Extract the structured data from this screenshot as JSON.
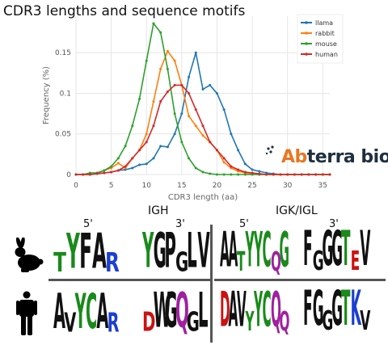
{
  "title": "CDR3 lengths and sequence motifs",
  "chart_data": {
    "type": "line",
    "xlabel": "CDR3 length (aa)",
    "ylabel": "Frequency (%)",
    "xlim": [
      0,
      36
    ],
    "ylim": [
      0,
      0.195
    ],
    "xticks": [
      0,
      5,
      10,
      15,
      20,
      25,
      30,
      35
    ],
    "yticks": [
      0,
      0.05,
      0.1,
      0.15
    ],
    "ytick_labels": [
      "0",
      "0.05",
      "0.1",
      "0.15"
    ],
    "grid": true,
    "legend_position": "top-right",
    "x": [
      0,
      1,
      2,
      3,
      4,
      5,
      6,
      7,
      8,
      9,
      10,
      11,
      12,
      13,
      14,
      15,
      16,
      17,
      18,
      19,
      20,
      21,
      22,
      23,
      24,
      25,
      26,
      27,
      28,
      29,
      30,
      31,
      32,
      33,
      34,
      35,
      36
    ],
    "series": [
      {
        "name": "llama",
        "color": "#1f77b4",
        "values": [
          0,
          0,
          0,
          0.001,
          0.002,
          0.003,
          0.005,
          0.006,
          0.008,
          0.012,
          0.013,
          0.02,
          0.035,
          0.034,
          0.05,
          0.075,
          0.12,
          0.15,
          0.105,
          0.11,
          0.1,
          0.08,
          0.05,
          0.03,
          0.013,
          0.006,
          0.004,
          0.002,
          0.001,
          0,
          0,
          0,
          0,
          0,
          0,
          0,
          0
        ]
      },
      {
        "name": "rabbit",
        "color": "#ff7f0e",
        "values": [
          0,
          0,
          0,
          0.002,
          0.005,
          0.008,
          0.014,
          0.008,
          0.02,
          0.03,
          0.05,
          0.09,
          0.13,
          0.152,
          0.14,
          0.11,
          0.072,
          0.06,
          0.048,
          0.04,
          0.03,
          0.015,
          0.008,
          0.004,
          0.002,
          0.001,
          0,
          0,
          0,
          0,
          0,
          0,
          0,
          0,
          0,
          0,
          0
        ]
      },
      {
        "name": "mouse",
        "color": "#2ca02c",
        "values": [
          0,
          0,
          0.002,
          0.002,
          0.005,
          0.01,
          0.02,
          0.035,
          0.06,
          0.093,
          0.14,
          0.186,
          0.175,
          0.13,
          0.075,
          0.04,
          0.02,
          0.008,
          0.003,
          0.001,
          0,
          0,
          0,
          0,
          0,
          0,
          0,
          0,
          0,
          0,
          0,
          0,
          0,
          0,
          0,
          0,
          0
        ]
      },
      {
        "name": "human",
        "color": "#d62728",
        "values": [
          0,
          0,
          0,
          0.001,
          0.002,
          0.003,
          0.005,
          0.01,
          0.02,
          0.03,
          0.04,
          0.06,
          0.09,
          0.102,
          0.11,
          0.11,
          0.1,
          0.08,
          0.06,
          0.04,
          0.03,
          0.02,
          0.01,
          0.006,
          0.003,
          0.002,
          0.001,
          0,
          0,
          0,
          0,
          0,
          0,
          0,
          0,
          0,
          0
        ]
      }
    ]
  },
  "logo": {
    "part1": "Ab",
    "part2": "terra bio"
  },
  "sections": {
    "igh": "IGH",
    "igk": "IGK/IGL",
    "five1": "5'",
    "three1": "3'",
    "five2": "5'",
    "three2": "3'"
  },
  "rows": [
    {
      "species_icon": "rabbit-icon",
      "motifs": [
        {
          "letters": "TYFAR",
          "colors": [
            "#1a8a1a",
            "#1a8a1a",
            "#111111",
            "#111111",
            "#1b3fd1"
          ]
        },
        {
          "letters": "YGPGLV",
          "colors": [
            "#1a8a1a",
            "#111111",
            "#111111",
            "#111111",
            "#111111",
            "#111111"
          ]
        },
        {
          "letters": "AATYYCQG",
          "colors": [
            "#111111",
            "#111111",
            "#1a8a1a",
            "#1a8a1a",
            "#1a8a1a",
            "#1a8a1a",
            "#a020a0",
            "#1a8a1a"
          ]
        },
        {
          "letters": "FGGGTEV",
          "colors": [
            "#111111",
            "#111111",
            "#111111",
            "#111111",
            "#1a8a1a",
            "#cc1111",
            "#111111"
          ]
        }
      ]
    },
    {
      "species_icon": "person-icon",
      "motifs": [
        {
          "letters": "AVYCAR",
          "colors": [
            "#111111",
            "#111111",
            "#1a8a1a",
            "#1a8a1a",
            "#111111",
            "#1b3fd1"
          ]
        },
        {
          "letters": "DWGQGL",
          "colors": [
            "#cc1111",
            "#111111",
            "#111111",
            "#a020a0",
            "#111111",
            "#111111"
          ]
        },
        {
          "letters": "DAVYYCQQ",
          "colors": [
            "#cc1111",
            "#111111",
            "#111111",
            "#1a8a1a",
            "#1a8a1a",
            "#1a8a1a",
            "#a020a0",
            "#a020a0"
          ]
        },
        {
          "letters": "FGGGTKV",
          "colors": [
            "#111111",
            "#111111",
            "#111111",
            "#111111",
            "#1a8a1a",
            "#1b3fd1",
            "#111111"
          ]
        }
      ]
    }
  ]
}
